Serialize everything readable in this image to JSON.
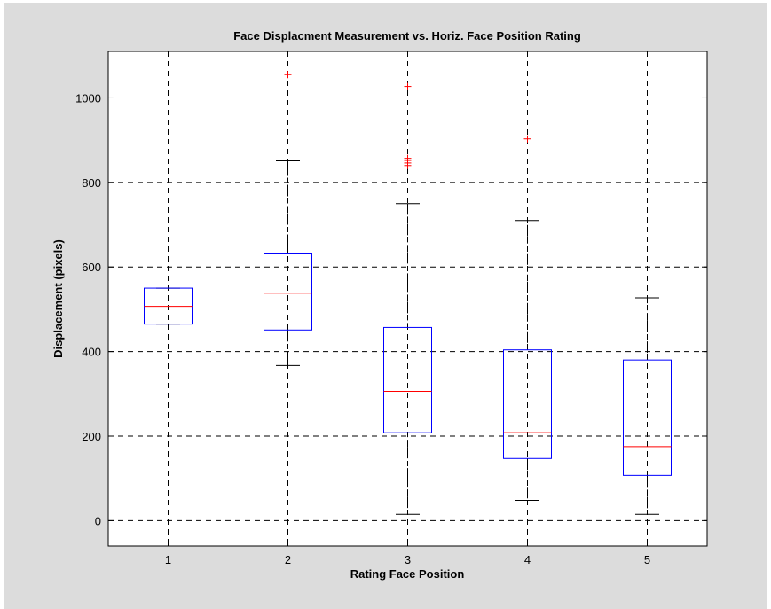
{
  "chart_data": {
    "type": "box",
    "title": "Face Displacment Measurement vs. Horiz. Face Position Rating",
    "xlabel": "Rating Face Position",
    "ylabel": "Displacement (pixels)",
    "xlim": [
      0.5,
      5.5
    ],
    "ylim": [
      -60,
      1110
    ],
    "xticks": [
      "1",
      "2",
      "3",
      "4",
      "5"
    ],
    "yticks": [
      "0",
      "200",
      "400",
      "600",
      "800",
      "1000"
    ],
    "grid": true,
    "box_color": "#0000ff",
    "median_color": "#ff0000",
    "whisker_color": "#000000",
    "outlier_color": "#ff0000",
    "categories": [
      "1",
      "2",
      "3",
      "4",
      "5"
    ],
    "boxes": [
      {
        "category": "1",
        "lower_whisker": 465,
        "q1": 465,
        "median": 507,
        "q3": 550,
        "upper_whisker": 550,
        "outliers": []
      },
      {
        "category": "2",
        "lower_whisker": 367,
        "q1": 451,
        "median": 538,
        "q3": 633,
        "upper_whisker": 851,
        "outliers": [
          1055
        ]
      },
      {
        "category": "3",
        "lower_whisker": 15,
        "q1": 208,
        "median": 306,
        "q3": 457,
        "upper_whisker": 750,
        "outliers": [
          840,
          846,
          852,
          857,
          1027
        ]
      },
      {
        "category": "4",
        "lower_whisker": 48,
        "q1": 147,
        "median": 208,
        "q3": 404,
        "upper_whisker": 710,
        "outliers": [
          903
        ]
      },
      {
        "category": "5",
        "lower_whisker": 15,
        "q1": 107,
        "median": 175,
        "q3": 380,
        "upper_whisker": 527,
        "outliers": []
      }
    ]
  }
}
